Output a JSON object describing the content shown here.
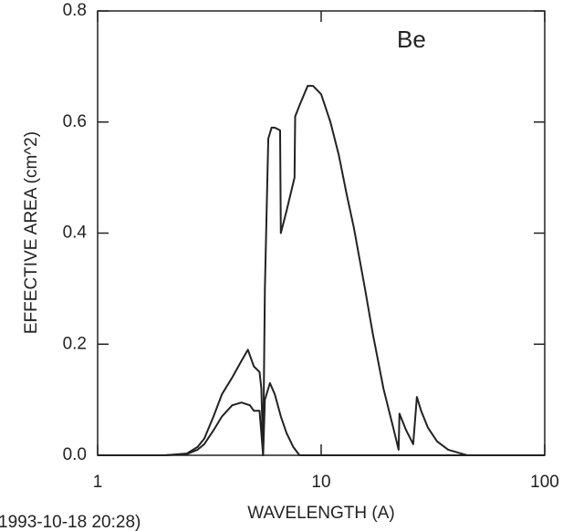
{
  "chart_data": {
    "type": "line",
    "annotation": "Be",
    "xlabel": "WAVELENGTH (A)",
    "ylabel": "EFFECTIVE AREA (cm^2)",
    "footer": "1993-10-18 20:28)",
    "xscale": "log",
    "xlim": [
      1,
      100
    ],
    "xticks": [
      1,
      10,
      100
    ],
    "ylim": [
      0,
      0.8
    ],
    "yticks": [
      {
        "value": 0,
        "label": "0.0"
      },
      0.2,
      0.4,
      0.6,
      0.8
    ],
    "series": [
      {
        "color": "#222222",
        "x": [
          1,
          2,
          2.5,
          2.8,
          3.0,
          3.3,
          3.6,
          4.0,
          4.4,
          4.7,
          5.0,
          5.3,
          5.4,
          5.5,
          5.6,
          5.8,
          6.0,
          6.2,
          6.55,
          6.6,
          7.0,
          7.6,
          7.65,
          8.0,
          8.7,
          9.2,
          10,
          11,
          12,
          13,
          14,
          15.7,
          17,
          19,
          21,
          22.2,
          22.4,
          24,
          25.8,
          26.8,
          28,
          30,
          33,
          37,
          45,
          100
        ],
        "values": [
          0,
          0,
          0.003,
          0.015,
          0.03,
          0.07,
          0.11,
          0.14,
          0.17,
          0.19,
          0.16,
          0.15,
          0.12,
          0,
          0.3,
          0.57,
          0.59,
          0.59,
          0.585,
          0.4,
          0.44,
          0.5,
          0.61,
          0.63,
          0.665,
          0.665,
          0.65,
          0.6,
          0.54,
          0.47,
          0.41,
          0.3,
          0.22,
          0.12,
          0.05,
          0.01,
          0.075,
          0.045,
          0.02,
          0.105,
          0.08,
          0.05,
          0.025,
          0.01,
          0,
          0
        ]
      },
      {
        "color": "#222222",
        "x": [
          1,
          2,
          2.5,
          2.8,
          3.0,
          3.3,
          3.6,
          4.0,
          4.4,
          4.8,
          5.0,
          5.3,
          5.5,
          5.6,
          5.9,
          6.2,
          6.6,
          7.0,
          7.5,
          8.0,
          100
        ],
        "values": [
          0,
          0,
          0.002,
          0.01,
          0.02,
          0.045,
          0.07,
          0.09,
          0.095,
          0.09,
          0.08,
          0.08,
          0,
          0.1,
          0.13,
          0.11,
          0.07,
          0.04,
          0.015,
          0,
          0
        ]
      }
    ]
  }
}
